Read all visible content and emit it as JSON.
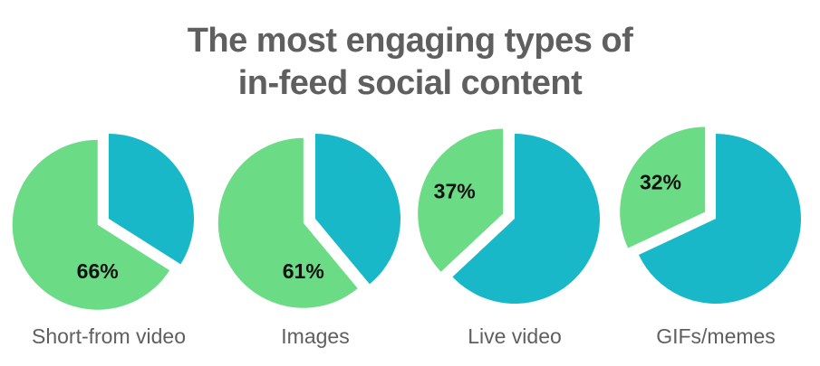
{
  "chart_data": {
    "type": "pie",
    "title_lines": [
      "The most engaging types of",
      "in-feed social content"
    ],
    "colors": {
      "highlight": "#6bdc85",
      "rest": "#18b8c8",
      "title": "#5f5f5f",
      "label": "#5f5f5f",
      "value": "#111111"
    },
    "charts": [
      {
        "category": "Short-from video",
        "value": 66,
        "value_label": "66%"
      },
      {
        "category": "Images",
        "value": 61,
        "value_label": "61%"
      },
      {
        "category": "Live video",
        "value": 37,
        "value_label": "37%"
      },
      {
        "category": "GIFs/memes",
        "value": 32,
        "value_label": "32%"
      }
    ]
  }
}
